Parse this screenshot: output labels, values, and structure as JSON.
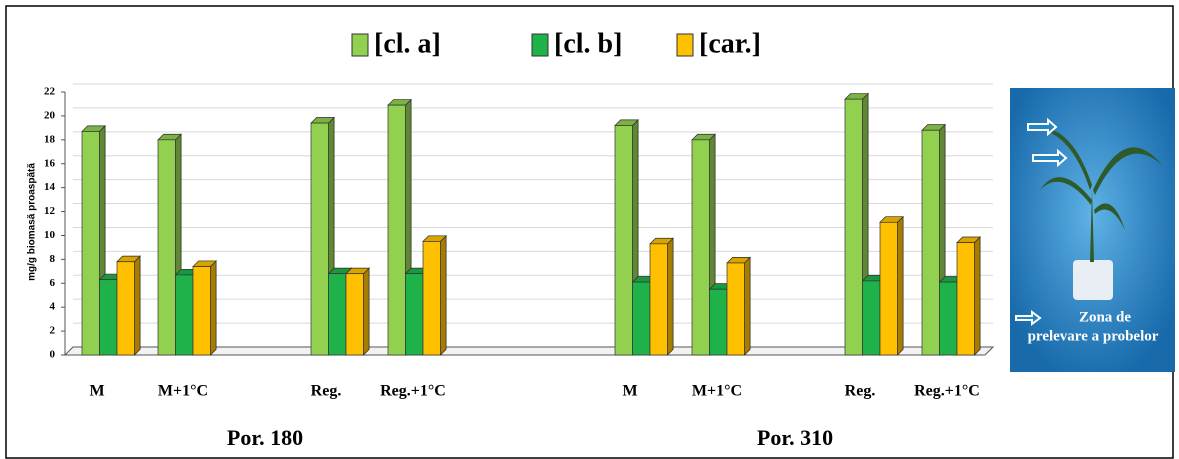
{
  "chart_data": {
    "type": "bar3d",
    "y_label": "mg/g biomasă proaspătă",
    "categories": [
      "M",
      "M+1°C",
      "Reg.",
      "Reg.+1°C",
      "M",
      "M+1°C",
      "Reg.",
      "Reg.+1°C"
    ],
    "groups": [
      "Por. 180",
      "Por. 310"
    ],
    "series": [
      {
        "name": "[cl. a]",
        "color": "#92d050",
        "values": [
          18.7,
          18.0,
          19.4,
          20.9,
          19.2,
          18.0,
          21.4,
          18.8
        ]
      },
      {
        "name": "[cl. b]",
        "color": "#1fb24a",
        "values": [
          6.3,
          6.7,
          6.8,
          6.8,
          6.1,
          5.5,
          6.2,
          6.1
        ]
      },
      {
        "name": "[car.]",
        "color": "#ffc000",
        "values": [
          7.8,
          7.4,
          6.8,
          9.5,
          9.3,
          7.7,
          11.1,
          9.4
        ]
      }
    ],
    "ylim": [
      0,
      22
    ],
    "yticks": [
      0,
      2,
      4,
      6,
      8,
      10,
      12,
      14,
      16,
      18,
      20,
      22
    ],
    "grid": true,
    "legend": "top"
  },
  "photo_caption": [
    "Zona de",
    "prelevare a probelor"
  ]
}
